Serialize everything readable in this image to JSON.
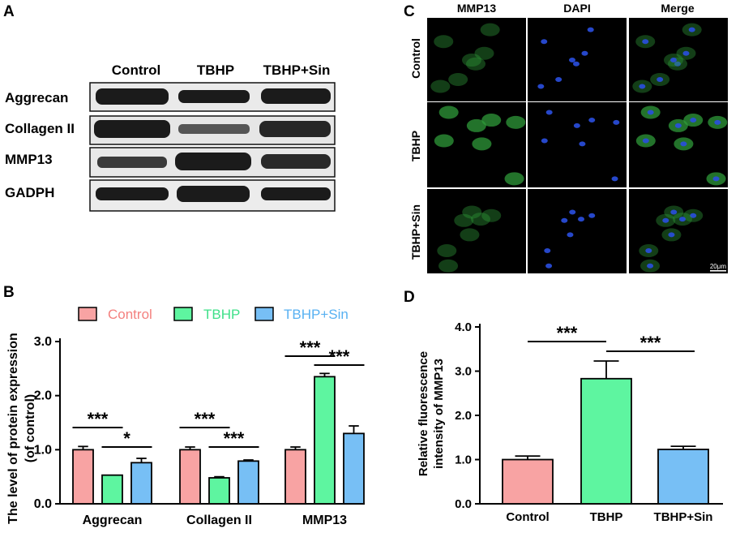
{
  "panels": {
    "a": "A",
    "b": "B",
    "c": "C",
    "d": "D"
  },
  "western_blot": {
    "lanes": [
      "Control",
      "TBHP",
      "TBHP+Sin"
    ],
    "proteins": [
      "Aggrecan",
      "Collagen II",
      "MMP13",
      "GADPH"
    ]
  },
  "immunofluorescence": {
    "channels": [
      "MMP13",
      "DAPI",
      "Merge"
    ],
    "conditions": [
      "Control",
      "TBHP",
      "TBHP+Sin"
    ],
    "scale_bar": "20μm"
  },
  "colors": {
    "control": "#f8a3a3",
    "tbhp": "#5ef5a0",
    "tbhp_sin": "#77bff5",
    "legend_control_text": "#f4807e",
    "legend_tbhp_text": "#3fe089",
    "legend_sin_text": "#58b1f2"
  },
  "chart_data": [
    {
      "type": "bar",
      "panel": "B",
      "ylabel": "The level of protein expression\n(of control)",
      "ylabel_lines": [
        "The level of protein expression",
        "(of control)"
      ],
      "categories": [
        "Aggrecan",
        "Collagen II",
        "MMP13"
      ],
      "series": [
        {
          "name": "Control",
          "values": [
            1.0,
            1.0,
            1.0
          ],
          "errors": [
            0.06,
            0.05,
            0.05
          ]
        },
        {
          "name": "TBHP",
          "values": [
            0.53,
            0.48,
            2.35
          ],
          "errors": [
            0.0,
            0.02,
            0.06
          ]
        },
        {
          "name": "TBHP+Sin",
          "values": [
            0.76,
            0.79,
            1.3
          ],
          "errors": [
            0.08,
            0.02,
            0.14
          ]
        }
      ],
      "ylim": [
        0,
        3.0
      ],
      "yticks": [
        "0.0",
        "1.0",
        "2.0",
        "3.0"
      ],
      "legend": "top",
      "annotations": [
        {
          "category": "Aggrecan",
          "from": "Control",
          "to": "TBHP",
          "text": "***"
        },
        {
          "category": "Aggrecan",
          "from": "TBHP",
          "to": "TBHP+Sin",
          "text": "*"
        },
        {
          "category": "Collagen II",
          "from": "Control",
          "to": "TBHP",
          "text": "***"
        },
        {
          "category": "Collagen II",
          "from": "TBHP",
          "to": "TBHP+Sin",
          "text": "***"
        },
        {
          "category": "MMP13",
          "from": "Control",
          "to": "TBHP",
          "text": "***"
        },
        {
          "category": "MMP13",
          "from": "TBHP",
          "to": "TBHP+Sin",
          "text": "***"
        }
      ]
    },
    {
      "type": "bar",
      "panel": "D",
      "ylabel": "Relative fluorescence\nintensity of MMP13",
      "ylabel_lines": [
        "Relative fluorescence",
        "intensity of MMP13"
      ],
      "categories": [
        "Control",
        "TBHP",
        "TBHP+Sin"
      ],
      "values": [
        1.0,
        2.83,
        1.23
      ],
      "errors": [
        0.08,
        0.4,
        0.07
      ],
      "ylim": [
        0,
        4.0
      ],
      "yticks": [
        "0.0",
        "1.0",
        "2.0",
        "3.0",
        "4.0"
      ],
      "annotations": [
        {
          "from": "Control",
          "to": "TBHP",
          "text": "***"
        },
        {
          "from": "TBHP",
          "to": "TBHP+Sin",
          "text": "***"
        }
      ]
    }
  ]
}
